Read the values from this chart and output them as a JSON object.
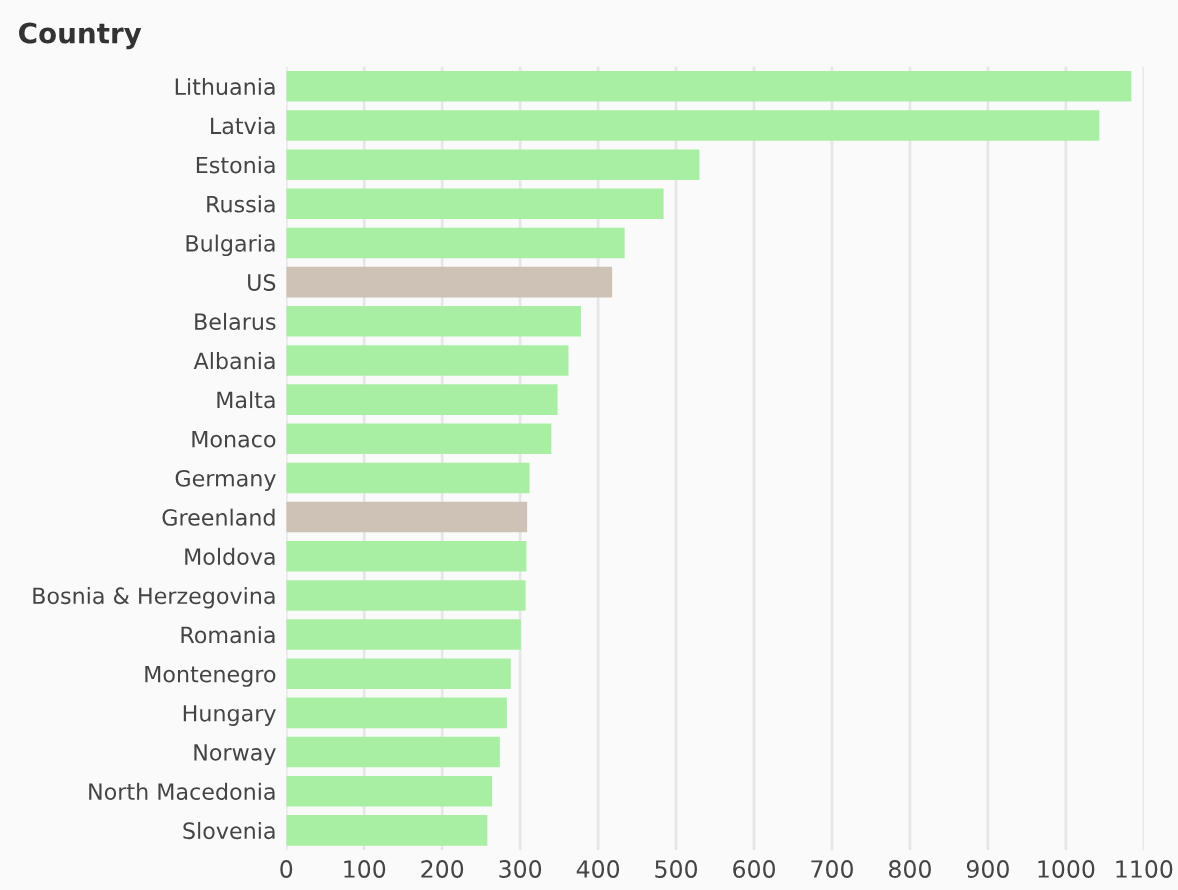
{
  "chart_data": {
    "type": "bar",
    "orientation": "horizontal",
    "ylabel": "Country",
    "categories": [
      "Lithuania",
      "Latvia",
      "Estonia",
      "Russia",
      "Bulgaria",
      "US",
      "Belarus",
      "Albania",
      "Malta",
      "Monaco",
      "Germany",
      "Greenland",
      "Moldova",
      "Bosnia & Herzegovina",
      "Romania",
      "Montenegro",
      "Hungary",
      "Norway",
      "North Macedonia",
      "Slovenia"
    ],
    "values": [
      1084,
      1043,
      530,
      484,
      434,
      418,
      378,
      362,
      348,
      340,
      312,
      309,
      308,
      307,
      301,
      288,
      283,
      274,
      264,
      258
    ],
    "colors": [
      "#a8efa3",
      "#a8efa3",
      "#a8efa3",
      "#a8efa3",
      "#a8efa3",
      "#cdc2b5",
      "#a8efa3",
      "#a8efa3",
      "#a8efa3",
      "#a8efa3",
      "#a8efa3",
      "#cdc2b5",
      "#a8efa3",
      "#a8efa3",
      "#a8efa3",
      "#a8efa3",
      "#a8efa3",
      "#a8efa3",
      "#a8efa3",
      "#a8efa3"
    ],
    "xlim": [
      0,
      1100
    ],
    "xticks": [
      0,
      100,
      200,
      300,
      400,
      500,
      600,
      700,
      800,
      900,
      1000,
      1100
    ],
    "grid": "x"
  }
}
